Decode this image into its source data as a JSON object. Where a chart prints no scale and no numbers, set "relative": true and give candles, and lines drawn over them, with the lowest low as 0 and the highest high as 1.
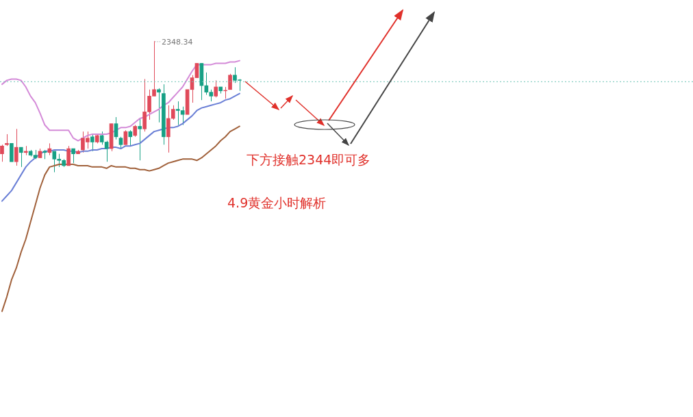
{
  "chart_data": [
    {
      "type": "candlestick",
      "relative": true,
      "legend": false,
      "tick_labels": false,
      "categories": [
        null,
        null,
        null,
        null,
        null,
        null,
        null,
        null,
        null,
        null,
        null,
        null,
        null,
        null,
        null,
        null,
        null,
        null,
        null,
        null,
        null,
        null,
        null,
        null,
        null,
        null,
        null,
        null,
        null,
        null,
        null,
        null,
        null,
        null,
        null,
        null,
        null,
        null,
        null,
        null,
        null,
        null,
        null,
        null,
        null,
        null,
        null,
        null,
        null,
        null,
        null
      ],
      "ohlc": [
        [
          0.14,
          0.21,
          0.08,
          0.2
        ],
        [
          0.21,
          0.29,
          0.2,
          0.22
        ],
        [
          0.22,
          0.22,
          0.08,
          0.08
        ],
        [
          0.08,
          0.33,
          0.05,
          0.19
        ],
        [
          0.19,
          0.19,
          0.04,
          0.15
        ],
        [
          0.15,
          0.2,
          0.13,
          0.16
        ],
        [
          0.16,
          0.17,
          0.12,
          0.13
        ],
        [
          0.13,
          0.17,
          0.1,
          0.11
        ],
        [
          0.11,
          0.18,
          0.11,
          0.16
        ],
        [
          0.16,
          0.17,
          0.1,
          0.15
        ],
        [
          0.15,
          0.22,
          0.13,
          0.18
        ],
        [
          0.16,
          0.16,
          0,
          0.1
        ],
        [
          0.1,
          0.14,
          0.04,
          0.09
        ],
        [
          0.09,
          0.1,
          0.04,
          0.05
        ],
        [
          0.05,
          0.2,
          0.05,
          0.18
        ],
        [
          0.18,
          0.18,
          0.07,
          0.14
        ],
        [
          0.14,
          0.17,
          0.14,
          0.16
        ],
        [
          0.17,
          0.31,
          0.15,
          0.26
        ],
        [
          0.23,
          0.31,
          0.18,
          0.26
        ],
        [
          0.27,
          0.29,
          0.16,
          0.23
        ],
        [
          0.23,
          0.29,
          0.22,
          0.28
        ],
        [
          0.28,
          0.31,
          0.21,
          0.23
        ],
        [
          0.23,
          0.24,
          0.08,
          0.18
        ],
        [
          0.18,
          0.37,
          0.16,
          0.37
        ],
        [
          0.37,
          0.42,
          0.25,
          0.27
        ],
        [
          0.26,
          0.27,
          0.18,
          0.21
        ],
        [
          0.21,
          0.32,
          0.21,
          0.31
        ],
        [
          0.31,
          0.32,
          0.2,
          0.27
        ],
        [
          0.28,
          0.36,
          0.27,
          0.35
        ],
        [
          0.35,
          0.41,
          0.09,
          0.33
        ],
        [
          0.33,
          0.71,
          0.31,
          0.46
        ],
        [
          0.46,
          0.63,
          0.4,
          0.58
        ],
        [
          0.58,
          1,
          0.58,
          0.63
        ],
        [
          0.63,
          0.64,
          0.38,
          0.61
        ],
        [
          0.6,
          0.67,
          0.21,
          0.27
        ],
        [
          0.27,
          0.51,
          0.15,
          0.41
        ],
        [
          0.41,
          0.51,
          0.4,
          0.48
        ],
        [
          0.48,
          0.54,
          0.36,
          0.47
        ],
        [
          0.47,
          0.5,
          0.36,
          0.44
        ],
        [
          0.44,
          0.63,
          0.44,
          0.63
        ],
        [
          0.63,
          0.74,
          0.53,
          0.72
        ],
        [
          0.72,
          0.83,
          0.72,
          0.83
        ],
        [
          0.83,
          0.83,
          0.55,
          0.66
        ],
        [
          0.66,
          0.76,
          0.59,
          0.61
        ],
        [
          0.61,
          0.63,
          0.54,
          0.58
        ],
        [
          0.58,
          0.7,
          0.57,
          0.65
        ],
        [
          0.65,
          0.65,
          0.6,
          0.62
        ],
        [
          0.62,
          0.65,
          0.56,
          0.62
        ],
        [
          0.63,
          0.75,
          0.63,
          0.74
        ],
        [
          0.74,
          0.8,
          0.68,
          0.7
        ],
        [
          0.7,
          0.71,
          0.62,
          0.7
        ]
      ],
      "colors": [
        "#e04a5a",
        "#e04a5a",
        "#17a085",
        "#e04a5a",
        "#17a085",
        "#e04a5a",
        "#17a085",
        "#17a085",
        "#e04a5a",
        "#17a085",
        "#e04a5a",
        "#17a085",
        "#17a085",
        "#17a085",
        "#e04a5a",
        "#17a085",
        "#e04a5a",
        "#e04a5a",
        "#e04a5a",
        "#17a085",
        "#e04a5a",
        "#17a085",
        "#17a085",
        "#e04a5a",
        "#17a085",
        "#17a085",
        "#e04a5a",
        "#17a085",
        "#e04a5a",
        "#17a085",
        "#e04a5a",
        "#e04a5a",
        "#e04a5a",
        "#17a085",
        "#17a085",
        "#e04a5a",
        "#e04a5a",
        "#17a085",
        "#17a085",
        "#e04a5a",
        "#e04a5a",
        "#e04a5a",
        "#17a085",
        "#17a085",
        "#17a085",
        "#e04a5a",
        "#17a085",
        "#e04a5a",
        "#e04a5a",
        "#17a085",
        "#17a085"
      ],
      "ref_lines": [
        {
          "axis": "y",
          "value": 0.69,
          "color": "#6cc3b5",
          "line_style": "dotted"
        }
      ],
      "annotations": [
        "2348.34",
        "下方接触2344即可多",
        "4.9黄金小时解析"
      ],
      "series": [
        {
          "type": "line",
          "color": "#d48ad8",
          "values": [
            0.67,
            0.7,
            0.71,
            0.71,
            0.7,
            0.65,
            0.58,
            0.53,
            0.45,
            0.36,
            0.32,
            0.32,
            0.32,
            0.32,
            0.32,
            0.26,
            0.24,
            0.26,
            0.28,
            0.29,
            0.29,
            0.29,
            0.29,
            0.3,
            0.32,
            0.34,
            0.34,
            0.35,
            0.38,
            0.41,
            0.42,
            0.44,
            0.46,
            0.48,
            0.51,
            0.53,
            0.57,
            0.61,
            0.65,
            0.71,
            0.77,
            0.82,
            0.82,
            0.82,
            0.82,
            0.83,
            0.83,
            0.83,
            0.84,
            0.84,
            0.85
          ]
        },
        {
          "type": "line",
          "color": "#6a7fd6",
          "values": [
            -0.22,
            -0.18,
            -0.14,
            -0.08,
            -0.02,
            0.04,
            0.08,
            0.11,
            0.14,
            0.16,
            0.16,
            0.17,
            0.17,
            0.17,
            0.16,
            0.16,
            0.15,
            0.16,
            0.16,
            0.17,
            0.17,
            0.18,
            0.18,
            0.19,
            0.19,
            0.18,
            0.2,
            0.2,
            0.21,
            0.22,
            0.25,
            0.28,
            0.31,
            0.32,
            0.33,
            0.34,
            0.34,
            0.35,
            0.37,
            0.4,
            0.43,
            0.47,
            0.49,
            0.5,
            0.51,
            0.52,
            0.53,
            0.55,
            0.56,
            0.58,
            0.6
          ]
        },
        {
          "type": "line",
          "color": "#a0603a",
          "values": [
            -1.06,
            -0.95,
            -0.82,
            -0.73,
            -0.61,
            -0.51,
            -0.38,
            -0.25,
            -0.12,
            -0.02,
            0.04,
            0.05,
            0.06,
            0.06,
            0.06,
            0.06,
            0.05,
            0.05,
            0.05,
            0.04,
            0.04,
            0.04,
            0.03,
            0.05,
            0.04,
            0.04,
            0.04,
            0.03,
            0.03,
            0.02,
            0.02,
            0.01,
            0.02,
            0.03,
            0.05,
            0.07,
            0.08,
            0.09,
            0.1,
            0.1,
            0.1,
            0.09,
            0.11,
            0.14,
            0.17,
            0.2,
            0.24,
            0.27,
            0.31,
            0.33,
            0.35
          ]
        }
      ]
    }
  ]
}
